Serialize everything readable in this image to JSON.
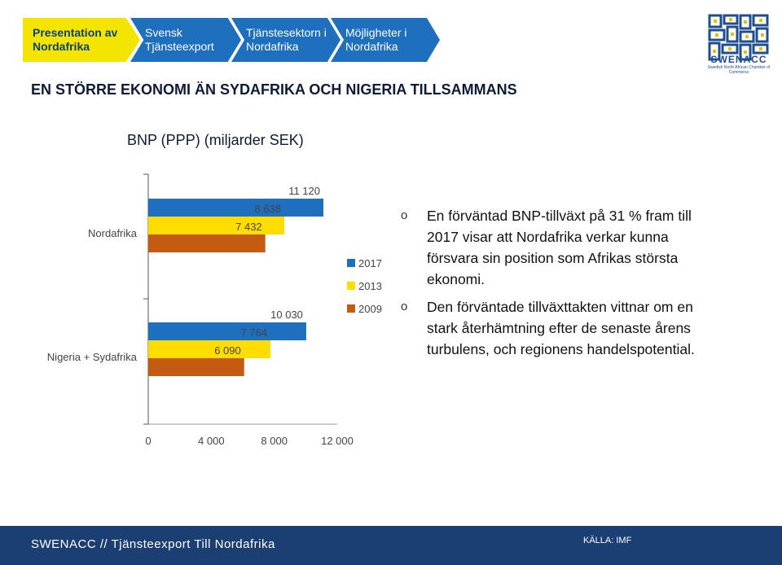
{
  "nav": {
    "items": [
      {
        "label": "Presentation av Nordafrika",
        "active": true
      },
      {
        "label": "Svensk Tjänsteexport",
        "active": false
      },
      {
        "label": "Tjänstesektorn i Nordafrika",
        "active": false
      },
      {
        "label": "Möjligheter i Nordafrika",
        "active": false
      }
    ]
  },
  "logo": {
    "name": "SWENACC",
    "subtitle": "Swedish North African Chamber of Commerce"
  },
  "page_title": "EN STÖRRE EKONOMI ÄN SYDAFRIKA OCH NIGERIA TILLSAMMANS",
  "chart_data": {
    "type": "bar",
    "orientation": "horizontal",
    "title": "BNP (PPP)  (miljarder SEK)",
    "categories": [
      "Nordafrika",
      "Nigeria + Sydafrika"
    ],
    "series": [
      {
        "name": "2017",
        "color": "#1f6fbf",
        "values": [
          11120,
          10030
        ]
      },
      {
        "name": "2013",
        "color": "#ffdd00",
        "values": [
          8638,
          7764
        ]
      },
      {
        "name": "2009",
        "color": "#c55a11",
        "values": [
          7432,
          6090
        ]
      }
    ],
    "value_labels": [
      [
        "11 120",
        "8 638",
        "7 432"
      ],
      [
        "10 030",
        "7 764",
        "6 090"
      ]
    ],
    "x_ticks": [
      0,
      4000,
      8000,
      12000
    ],
    "x_tick_labels": [
      "0",
      "4 000",
      "8 000",
      "12 000"
    ],
    "xlim": [
      0,
      12000
    ],
    "legend_position": "right",
    "grid": false
  },
  "bullets": [
    "En förväntad BNP-tillväxt på 31 % fram till 2017 visar att Nordafrika verkar kunna försvara sin position som Afrikas största ekonomi.",
    "Den förväntade tillväxttakten vittnar om en stark återhämtning efter de senaste årens turbulens, och regionens handelspotential."
  ],
  "bullet_marker": "o",
  "footer": {
    "text": "SWENACC // Tjänsteexport Till Nordafrika",
    "source": "KÄLLA: IMF"
  }
}
